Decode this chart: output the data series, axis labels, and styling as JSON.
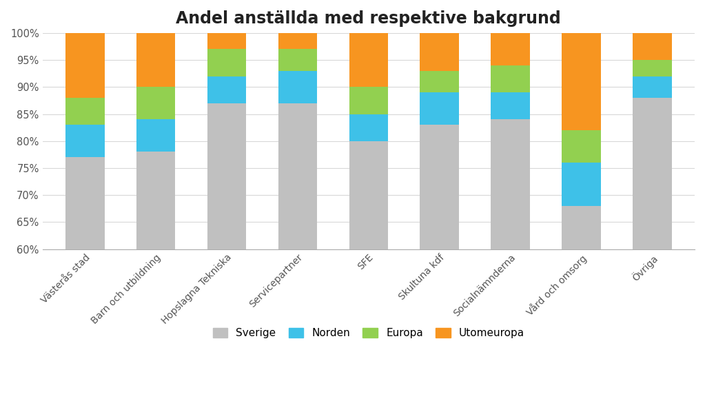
{
  "title": "Andel anställda med respektive bakgrund",
  "categories": [
    "Västerås stad",
    "Barn och utbildning",
    "Hopslagna Tekniska",
    "Servicepartner",
    "SFE",
    "Skultuna kdf",
    "Socialnämnderna",
    "Vård och omsorg",
    "Övriga"
  ],
  "sverige": [
    77,
    78,
    87,
    87,
    80,
    83,
    84,
    68,
    88
  ],
  "norden": [
    6,
    6,
    5,
    6,
    5,
    6,
    5,
    8,
    4
  ],
  "europa": [
    5,
    6,
    5,
    4,
    5,
    4,
    5,
    6,
    3
  ],
  "utomeuropa": [
    12,
    10,
    3,
    3,
    10,
    7,
    6,
    18,
    5
  ],
  "colors": {
    "sverige": "#c0c0c0",
    "norden": "#3ec1e8",
    "europa": "#92d050",
    "utomeuropa": "#f79520"
  },
  "ylim": [
    60,
    100
  ],
  "yticks": [
    60,
    65,
    70,
    75,
    80,
    85,
    90,
    95,
    100
  ],
  "yticklabels": [
    "60%",
    "65%",
    "70%",
    "75%",
    "80%",
    "85%",
    "90%",
    "95%",
    "100%"
  ],
  "background_color": "#ffffff",
  "title_fontsize": 17,
  "bar_width": 0.55
}
